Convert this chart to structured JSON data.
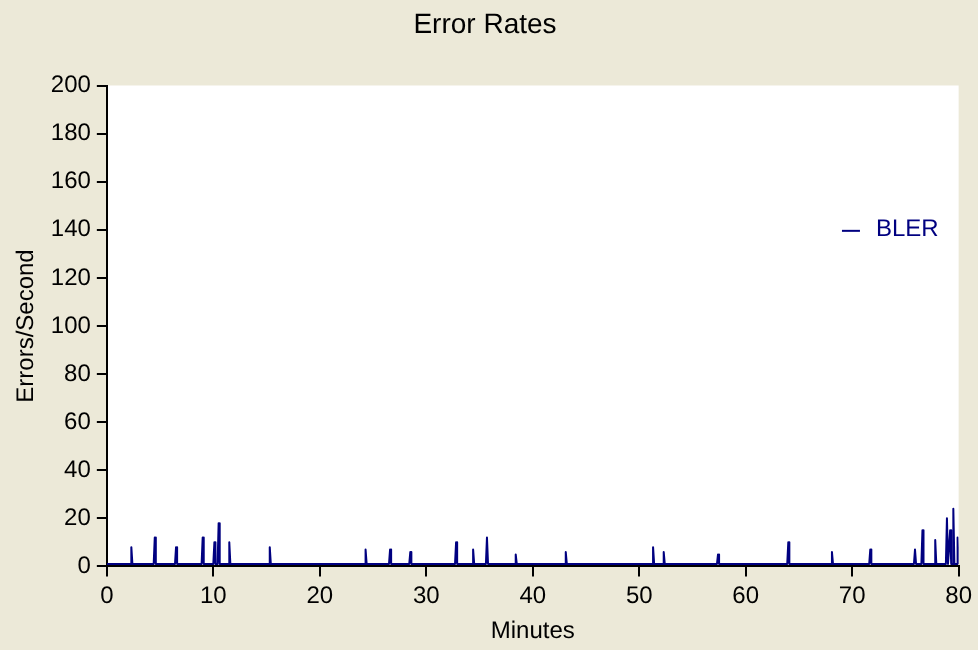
{
  "chart_data": {
    "type": "line",
    "title": "Error Rates",
    "xlabel": "Minutes",
    "ylabel": "Errors/Second",
    "xlim": [
      0,
      80
    ],
    "xticks": [
      0,
      10,
      20,
      30,
      40,
      50,
      60,
      70,
      80
    ],
    "ylim": [
      0,
      200
    ],
    "yticks": [
      0,
      20,
      40,
      60,
      80,
      100,
      120,
      140,
      160,
      180,
      200
    ],
    "grid": false,
    "legend": "right",
    "marker": "none",
    "series": [
      {
        "name": "BLER",
        "color": "#000080",
        "x": [
          0,
          2.2,
          2.3,
          2.4,
          4.4,
          4.5,
          4.6,
          6.4,
          6.5,
          6.6,
          8.9,
          9.0,
          9.1,
          10.0,
          10.1,
          10.2,
          10.4,
          10.5,
          10.6,
          11.4,
          11.5,
          11.6,
          15.2,
          15.3,
          15.4,
          24.2,
          24.3,
          24.4,
          26.5,
          26.6,
          26.7,
          28.4,
          28.5,
          28.6,
          32.7,
          32.8,
          32.9,
          34.3,
          34.4,
          34.5,
          35.6,
          35.7,
          35.8,
          38.3,
          38.4,
          38.5,
          43.0,
          43.1,
          43.2,
          51.2,
          51.3,
          51.4,
          52.2,
          52.3,
          52.4,
          57.3,
          57.4,
          57.5,
          63.9,
          64.0,
          64.1,
          68.0,
          68.1,
          68.2,
          71.6,
          71.7,
          71.8,
          75.8,
          75.9,
          76.0,
          76.5,
          76.6,
          76.7,
          77.7,
          77.8,
          77.9,
          78.8,
          78.9,
          79.0,
          79.1,
          79.2,
          79.3,
          79.4,
          79.5,
          79.6,
          79.8,
          79.9,
          80
        ],
        "values": [
          1,
          1,
          8,
          1,
          1,
          12,
          1,
          1,
          8,
          1,
          1,
          12,
          1,
          1,
          10,
          1,
          1,
          18,
          1,
          1,
          10,
          1,
          1,
          8,
          1,
          1,
          7,
          1,
          1,
          7,
          1,
          1,
          6,
          1,
          1,
          10,
          1,
          1,
          7,
          1,
          1,
          12,
          1,
          1,
          5,
          1,
          1,
          6,
          1,
          1,
          8,
          1,
          1,
          6,
          1,
          1,
          5,
          1,
          1,
          10,
          1,
          1,
          6,
          1,
          1,
          7,
          1,
          1,
          7,
          1,
          1,
          15,
          1,
          1,
          11,
          1,
          1,
          20,
          1,
          1,
          15,
          1,
          1,
          24,
          1,
          1,
          12,
          1
        ]
      }
    ]
  }
}
